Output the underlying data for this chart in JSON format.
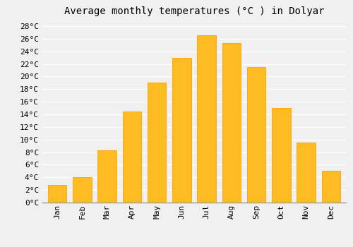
{
  "title": "Average monthly temperatures (°C ) in Dolyar",
  "months": [
    "Jan",
    "Feb",
    "Mar",
    "Apr",
    "May",
    "Jun",
    "Jul",
    "Aug",
    "Sep",
    "Oct",
    "Nov",
    "Dec"
  ],
  "temperatures": [
    2.8,
    4.0,
    8.3,
    14.5,
    19.0,
    23.0,
    26.5,
    25.3,
    21.5,
    15.0,
    9.5,
    5.0
  ],
  "bar_color": "#FFBB22",
  "bar_edge_color": "#FFA000",
  "background_color": "#f0f0f0",
  "grid_color": "#ffffff",
  "ylim": [
    0,
    29
  ],
  "yticks": [
    0,
    2,
    4,
    6,
    8,
    10,
    12,
    14,
    16,
    18,
    20,
    22,
    24,
    26,
    28
  ],
  "title_fontsize": 10,
  "tick_fontsize": 8,
  "title_font": "monospace"
}
